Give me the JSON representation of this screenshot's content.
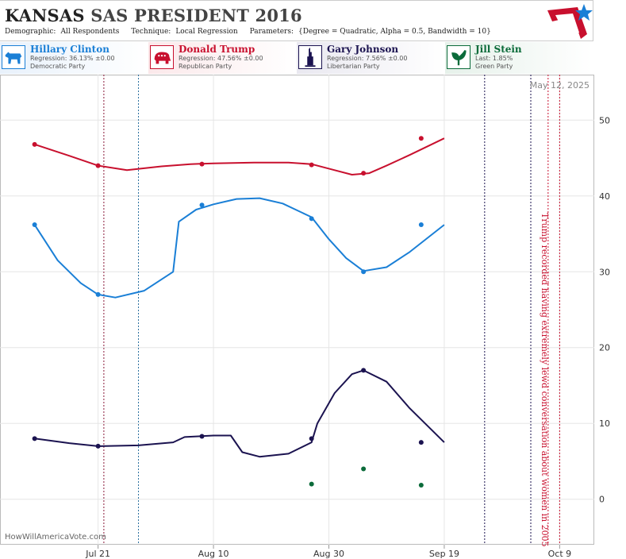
{
  "header": {
    "title_state": "KANSAS",
    "title_rest": "SAS PRESIDENT 2016",
    "demographic_label": "Demographic:",
    "demographic_value": "All Respondents",
    "technique_label": "Technique:",
    "technique_value": "Local Regression",
    "parameters_label": "Parameters:",
    "parameters_value": "{Degree = Quadratic, Alpha = 0.5, Bandwidth = 10}"
  },
  "candidates": [
    {
      "name": "Hillary Clinton",
      "stat": "Regression: 36.13% ±0.00",
      "party": "Democratic Party",
      "color": "#1a7fd6",
      "icon": "donkey-icon"
    },
    {
      "name": "Donald Trump",
      "stat": "Regression: 47.56% ±0.00",
      "party": "Republican Party",
      "color": "#c8102e",
      "icon": "elephant-icon"
    },
    {
      "name": "Gary Johnson",
      "stat": "Regression: 7.56% ±0.00",
      "party": "Libertarian Party",
      "color": "#1b1350",
      "icon": "liberty-icon"
    },
    {
      "name": "Jill Stein",
      "stat": "Last: 1.85%",
      "party": "Green Party",
      "color": "#0b6b3a",
      "icon": "leaf-icon"
    }
  ],
  "chart_data": {
    "type": "line",
    "date_label": "May 12, 2025",
    "watermark": "HowWillAmericaVote.com",
    "ylim": [
      -6,
      56
    ],
    "yticks": [
      0,
      10,
      20,
      30,
      40,
      50
    ],
    "xlim": [
      "2016-07-04",
      "2016-10-15"
    ],
    "xticks": [
      {
        "date": "2016-07-21",
        "label": "Jul 21"
      },
      {
        "date": "2016-08-10",
        "label": "Aug 10"
      },
      {
        "date": "2016-08-30",
        "label": "Aug 30"
      },
      {
        "date": "2016-09-19",
        "label": "Sep 19"
      },
      {
        "date": "2016-10-09",
        "label": "Oct 9"
      }
    ],
    "events": [
      {
        "date": "2016-07-22",
        "color": "#8b1a3a"
      },
      {
        "date": "2016-07-28",
        "color": "#2a6f9e"
      },
      {
        "date": "2016-09-26",
        "color": "#1b1350"
      },
      {
        "date": "2016-10-04",
        "color": "#1b1350"
      },
      {
        "date": "2016-10-07",
        "color": "#c8102e",
        "text": "Trump recorded having extremely lewd conversation about women in 2005"
      },
      {
        "date": "2016-10-09",
        "color": "#c8102e"
      }
    ],
    "series": [
      {
        "name": "Donald Trump",
        "color": "#c8102e",
        "line": [
          [
            "2016-07-10",
            46.8
          ],
          [
            "2016-07-16",
            45.3
          ],
          [
            "2016-07-21",
            44.0
          ],
          [
            "2016-07-26",
            43.4
          ],
          [
            "2016-08-01",
            43.9
          ],
          [
            "2016-08-06",
            44.2
          ],
          [
            "2016-08-10",
            44.3
          ],
          [
            "2016-08-17",
            44.4
          ],
          [
            "2016-08-23",
            44.4
          ],
          [
            "2016-08-27",
            44.2
          ],
          [
            "2016-08-31",
            43.4
          ],
          [
            "2016-09-03",
            42.8
          ],
          [
            "2016-09-06",
            43.0
          ],
          [
            "2016-09-09",
            44.0
          ],
          [
            "2016-09-13",
            45.4
          ],
          [
            "2016-09-19",
            47.6
          ]
        ],
        "points": [
          [
            "2016-07-10",
            46.8
          ],
          [
            "2016-07-21",
            44.0
          ],
          [
            "2016-08-08",
            44.2
          ],
          [
            "2016-08-27",
            44.1
          ],
          [
            "2016-09-05",
            43.0
          ],
          [
            "2016-09-15",
            47.6
          ]
        ]
      },
      {
        "name": "Hillary Clinton",
        "color": "#1a7fd6",
        "line": [
          [
            "2016-07-10",
            36.2
          ],
          [
            "2016-07-14",
            31.5
          ],
          [
            "2016-07-18",
            28.5
          ],
          [
            "2016-07-21",
            27.0
          ],
          [
            "2016-07-24",
            26.6
          ],
          [
            "2016-07-29",
            27.5
          ],
          [
            "2016-08-03",
            30.0
          ],
          [
            "2016-08-04",
            36.6
          ],
          [
            "2016-08-07",
            38.2
          ],
          [
            "2016-08-10",
            38.9
          ],
          [
            "2016-08-14",
            39.6
          ],
          [
            "2016-08-18",
            39.7
          ],
          [
            "2016-08-22",
            39.0
          ],
          [
            "2016-08-27",
            37.2
          ],
          [
            "2016-08-30",
            34.3
          ],
          [
            "2016-09-02",
            31.8
          ],
          [
            "2016-09-05",
            30.1
          ],
          [
            "2016-09-09",
            30.6
          ],
          [
            "2016-09-13",
            32.6
          ],
          [
            "2016-09-19",
            36.2
          ]
        ],
        "points": [
          [
            "2016-07-10",
            36.2
          ],
          [
            "2016-07-21",
            27.0
          ],
          [
            "2016-08-08",
            38.8
          ],
          [
            "2016-08-27",
            37.0
          ],
          [
            "2016-09-05",
            30.0
          ],
          [
            "2016-09-15",
            36.2
          ]
        ]
      },
      {
        "name": "Gary Johnson",
        "color": "#1b1350",
        "line": [
          [
            "2016-07-10",
            8.0
          ],
          [
            "2016-07-16",
            7.4
          ],
          [
            "2016-07-21",
            7.0
          ],
          [
            "2016-07-28",
            7.1
          ],
          [
            "2016-08-03",
            7.5
          ],
          [
            "2016-08-05",
            8.2
          ],
          [
            "2016-08-10",
            8.4
          ],
          [
            "2016-08-13",
            8.4
          ],
          [
            "2016-08-15",
            6.2
          ],
          [
            "2016-08-18",
            5.6
          ],
          [
            "2016-08-23",
            6.0
          ],
          [
            "2016-08-27",
            7.5
          ],
          [
            "2016-08-28",
            10.0
          ],
          [
            "2016-08-31",
            14.0
          ],
          [
            "2016-09-03",
            16.5
          ],
          [
            "2016-09-05",
            17.0
          ],
          [
            "2016-09-09",
            15.5
          ],
          [
            "2016-09-13",
            12.0
          ],
          [
            "2016-09-19",
            7.5
          ]
        ],
        "points": [
          [
            "2016-07-10",
            8.0
          ],
          [
            "2016-07-21",
            7.0
          ],
          [
            "2016-08-08",
            8.3
          ],
          [
            "2016-08-27",
            8.0
          ],
          [
            "2016-09-05",
            17.0
          ],
          [
            "2016-09-15",
            7.5
          ]
        ]
      },
      {
        "name": "Jill Stein",
        "color": "#0b6b3a",
        "line": [],
        "points": [
          [
            "2016-08-27",
            2.0
          ],
          [
            "2016-09-05",
            4.0
          ],
          [
            "2016-09-15",
            1.85
          ]
        ]
      }
    ]
  }
}
